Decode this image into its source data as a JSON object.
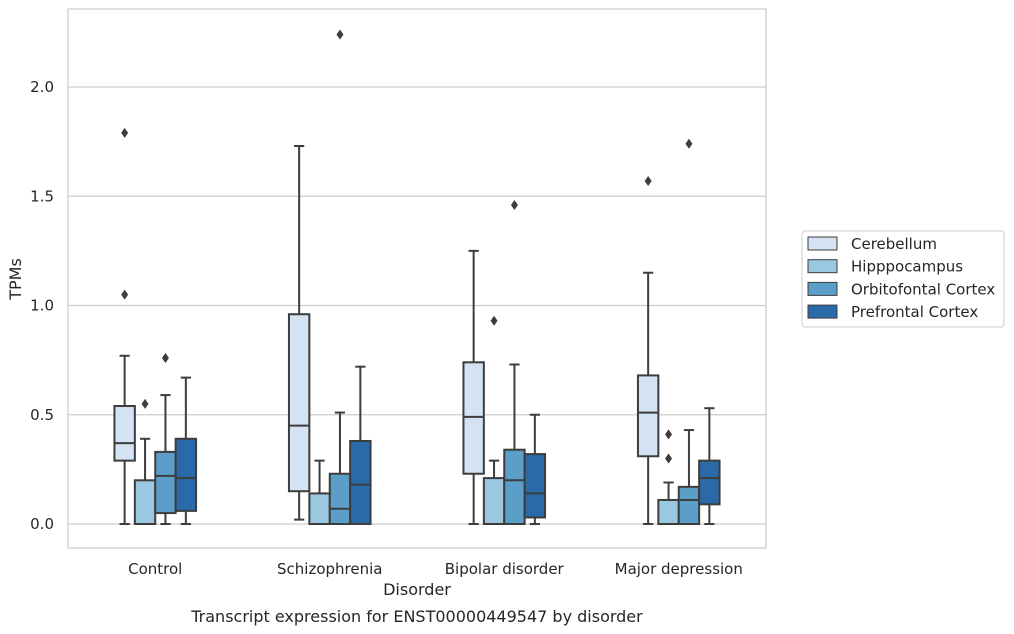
{
  "chart_data": {
    "type": "boxplot",
    "caption": "Transcript expression for ENST00000449547 by disorder",
    "xlabel": "Disorder",
    "ylabel": "TPMs",
    "ylim": [
      -0.11,
      2.35
    ],
    "yticks": [
      "0.0",
      "0.5",
      "1.0",
      "1.5",
      "2.0"
    ],
    "ytick_values": [
      0.0,
      0.5,
      1.0,
      1.5,
      2.0
    ],
    "grid": "horizontal",
    "legend_position": "right",
    "categories": [
      "Control",
      "Schizophrenia",
      "Bipolar disorder",
      "Major depression"
    ],
    "series": [
      {
        "name": "Cerebellum",
        "color": "#d3e3f3",
        "boxes": [
          {
            "whislo": 0.0,
            "q1": 0.29,
            "med": 0.37,
            "q3": 0.54,
            "whishi": 0.77,
            "fliers": [
              1.05,
              1.79
            ]
          },
          {
            "whislo": 0.02,
            "q1": 0.15,
            "med": 0.45,
            "q3": 0.96,
            "whishi": 1.73,
            "fliers": []
          },
          {
            "whislo": 0.0,
            "q1": 0.23,
            "med": 0.49,
            "q3": 0.74,
            "whishi": 1.25,
            "fliers": []
          },
          {
            "whislo": 0.0,
            "q1": 0.31,
            "med": 0.51,
            "q3": 0.68,
            "whishi": 1.15,
            "fliers": [
              1.57
            ]
          }
        ]
      },
      {
        "name": "Hipppocampus",
        "color": "#9ac8e0",
        "boxes": [
          {
            "whislo": 0.0,
            "q1": 0.0,
            "med": 0.0,
            "q3": 0.2,
            "whishi": 0.39,
            "fliers": [
              0.55
            ]
          },
          {
            "whislo": 0.0,
            "q1": 0.0,
            "med": 0.0,
            "q3": 0.14,
            "whishi": 0.29,
            "fliers": []
          },
          {
            "whislo": 0.0,
            "q1": 0.0,
            "med": 0.0,
            "q3": 0.21,
            "whishi": 0.29,
            "fliers": [
              0.93
            ]
          },
          {
            "whislo": 0.0,
            "q1": 0.0,
            "med": 0.0,
            "q3": 0.11,
            "whishi": 0.19,
            "fliers": [
              0.3,
              0.41
            ]
          }
        ]
      },
      {
        "name": "Orbitofontal Cortex",
        "color": "#5b9fc9",
        "boxes": [
          {
            "whislo": 0.0,
            "q1": 0.05,
            "med": 0.22,
            "q3": 0.33,
            "whishi": 0.59,
            "fliers": [
              0.76
            ]
          },
          {
            "whislo": 0.0,
            "q1": 0.0,
            "med": 0.07,
            "q3": 0.23,
            "whishi": 0.51,
            "fliers": [
              2.24
            ]
          },
          {
            "whislo": 0.0,
            "q1": 0.0,
            "med": 0.2,
            "q3": 0.34,
            "whishi": 0.73,
            "fliers": [
              1.46
            ]
          },
          {
            "whislo": 0.0,
            "q1": 0.0,
            "med": 0.11,
            "q3": 0.17,
            "whishi": 0.43,
            "fliers": [
              1.74
            ]
          }
        ]
      },
      {
        "name": "Prefrontal Cortex",
        "color": "#2b6aa9",
        "boxes": [
          {
            "whislo": 0.0,
            "q1": 0.06,
            "med": 0.21,
            "q3": 0.39,
            "whishi": 0.67,
            "fliers": []
          },
          {
            "whislo": 0.0,
            "q1": 0.0,
            "med": 0.18,
            "q3": 0.38,
            "whishi": 0.72,
            "fliers": []
          },
          {
            "whislo": 0.0,
            "q1": 0.03,
            "med": 0.14,
            "q3": 0.32,
            "whishi": 0.5,
            "fliers": []
          },
          {
            "whislo": 0.0,
            "q1": 0.09,
            "med": 0.21,
            "q3": 0.29,
            "whishi": 0.53,
            "fliers": []
          }
        ]
      }
    ]
  }
}
